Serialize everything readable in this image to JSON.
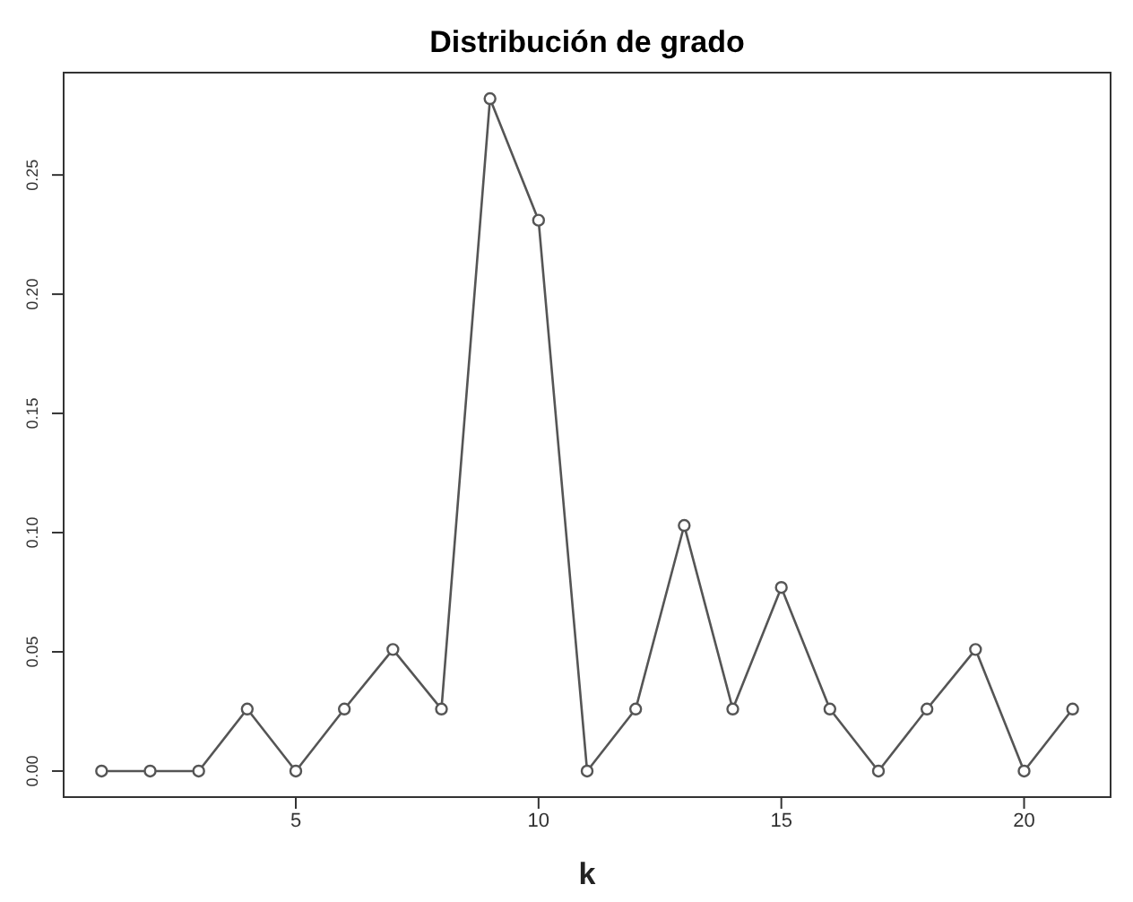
{
  "chart_data": {
    "type": "line",
    "title": "Distribución de grado",
    "xlabel": "k",
    "x": [
      1,
      2,
      3,
      4,
      5,
      6,
      7,
      8,
      9,
      10,
      11,
      12,
      13,
      14,
      15,
      16,
      17,
      18,
      19,
      20,
      21
    ],
    "series": [
      {
        "color": "#555555",
        "values": [
          0,
          0,
          0,
          0.026,
          0,
          0.026,
          0.051,
          0.026,
          0.282,
          0.231,
          0,
          0.026,
          0.103,
          0.026,
          0.077,
          0.026,
          0,
          0.026,
          0.051,
          0,
          0.026
        ]
      }
    ],
    "xlim": [
      0.2,
      21.8
    ],
    "ylim": [
      -0.0113,
      0.2933
    ],
    "xticks": [
      5,
      10,
      15,
      20
    ],
    "yticks": [
      {
        "value": 0,
        "label": "0.00"
      },
      0.05,
      {
        "value": 0.1,
        "label": "0.10"
      },
      0.15,
      {
        "value": 0.2,
        "label": "0.20"
      },
      0.25
    ],
    "grid": false,
    "marker": "circle",
    "line_style": "solid"
  }
}
